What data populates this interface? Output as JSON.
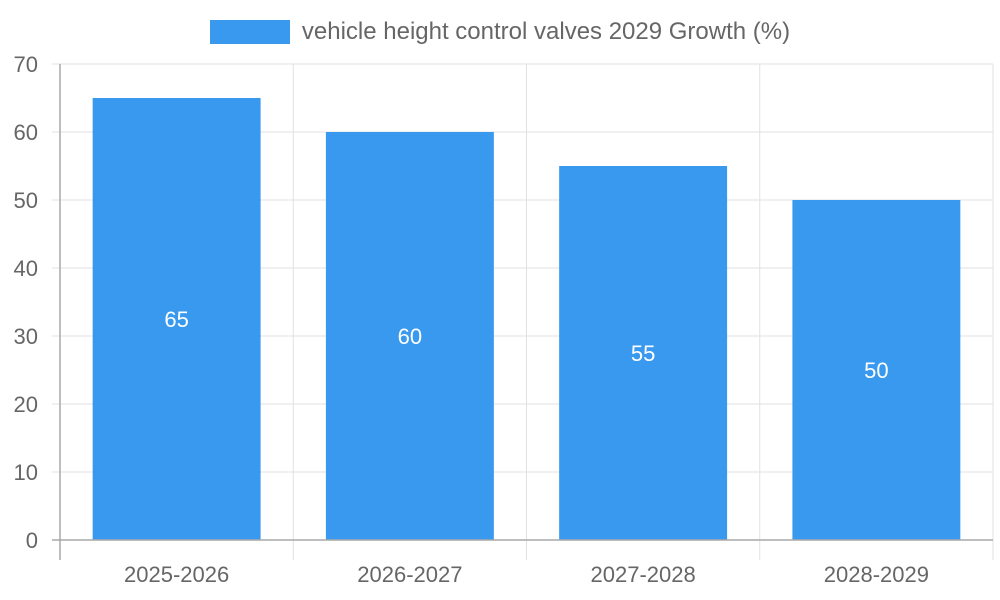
{
  "chart_data": {
    "type": "bar",
    "title": "",
    "categories": [
      "2025-2026",
      "2026-2027",
      "2027-2028",
      "2028-2029"
    ],
    "series": [
      {
        "name": "vehicle height control valves 2029 Growth (%)",
        "values": [
          65,
          60,
          55,
          50
        ],
        "color": "#3899ef"
      }
    ],
    "data_labels": [
      "65",
      "60",
      "55",
      "50"
    ],
    "xlabel": "",
    "ylabel": "",
    "ylim": [
      0,
      70
    ],
    "yticks": [
      0,
      10,
      20,
      30,
      40,
      50,
      60,
      70
    ],
    "grid": true,
    "legend": "top-center"
  },
  "colors": {
    "bar": "#3899ef",
    "grid": "#e1e1e1",
    "axis": "#a9a9a9",
    "tick_text": "#666666",
    "data_label_text": "#ffffff"
  }
}
